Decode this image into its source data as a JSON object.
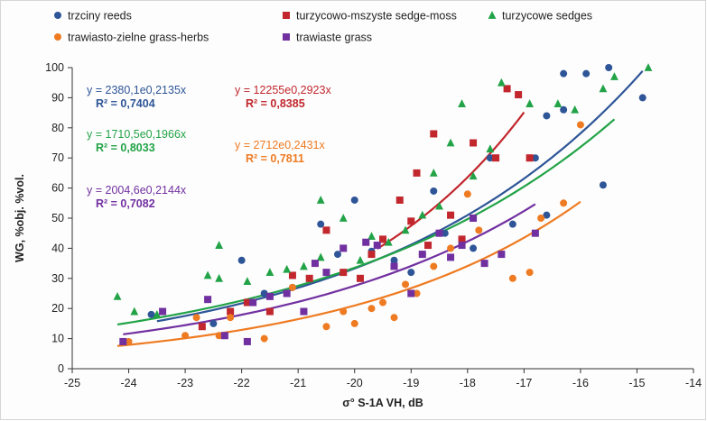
{
  "chart_data": {
    "type": "scatter",
    "xlabel": "σ° S-1A VH, dB",
    "ylabel": "WG, %obj. %vol.",
    "xlim": [
      -25,
      -14
    ],
    "ylim": [
      0,
      100
    ],
    "x_ticks": [
      "-25",
      "-24",
      "-23",
      "-22",
      "-21",
      "-20",
      "-19",
      "-18",
      "-17",
      "-16",
      "-15",
      "-14"
    ],
    "y_ticks": [
      "0",
      "10",
      "20",
      "30",
      "40",
      "50",
      "60",
      "70",
      "80",
      "90",
      "100"
    ],
    "grid": false,
    "legend_position": "top",
    "series": [
      {
        "name": "trzciny reeds",
        "marker": "circle",
        "color": "#2e5597",
        "trendline": {
          "a": 2380.1,
          "b": 0.2135,
          "x_range": [
            -23.5,
            -14.9
          ]
        },
        "equation": "y = 2380,1e0,2135x",
        "r2": "R² = 0,7404",
        "points": [
          [
            -23.6,
            18
          ],
          [
            -22.5,
            15
          ],
          [
            -22,
            36
          ],
          [
            -21.6,
            25
          ],
          [
            -21.1,
            27
          ],
          [
            -20.6,
            48
          ],
          [
            -20.3,
            38
          ],
          [
            -20,
            56
          ],
          [
            -19.7,
            39
          ],
          [
            -19.3,
            36
          ],
          [
            -19,
            32
          ],
          [
            -18.8,
            38
          ],
          [
            -18.6,
            59
          ],
          [
            -18.4,
            45
          ],
          [
            -18.1,
            43
          ],
          [
            -17.9,
            40
          ],
          [
            -17.6,
            70
          ],
          [
            -17.2,
            48
          ],
          [
            -16.8,
            70
          ],
          [
            -16.6,
            51
          ],
          [
            -16.6,
            84
          ],
          [
            -16.3,
            98
          ],
          [
            -16.3,
            86
          ],
          [
            -15.9,
            98
          ],
          [
            -15.6,
            61
          ],
          [
            -15.5,
            100
          ],
          [
            -14.9,
            90
          ]
        ]
      },
      {
        "name": "turzycowo-mszyste sedge-moss",
        "marker": "square",
        "color": "#c1272d",
        "trendline": {
          "a": 12255,
          "b": 0.2923,
          "x_range": [
            -19.6,
            -17
          ]
        },
        "equation": "y = 12255e0,2923x",
        "r2": "R² = 0,8385",
        "points": [
          [
            -22.7,
            14
          ],
          [
            -22.2,
            19
          ],
          [
            -21.9,
            22
          ],
          [
            -21.5,
            19
          ],
          [
            -21.1,
            31
          ],
          [
            -20.8,
            30
          ],
          [
            -20.5,
            46
          ],
          [
            -20.2,
            32
          ],
          [
            -19.9,
            30
          ],
          [
            -19.7,
            38
          ],
          [
            -19.5,
            43
          ],
          [
            -19.2,
            56
          ],
          [
            -19,
            49
          ],
          [
            -18.9,
            65
          ],
          [
            -18.7,
            41
          ],
          [
            -18.6,
            78
          ],
          [
            -18.3,
            51
          ],
          [
            -18.1,
            43
          ],
          [
            -17.9,
            75
          ],
          [
            -17.5,
            70
          ],
          [
            -17.3,
            93
          ],
          [
            -17.1,
            91
          ],
          [
            -16.9,
            70
          ]
        ]
      },
      {
        "name": "turzycowe sedges",
        "marker": "triangle",
        "color": "#22a347",
        "trendline": {
          "a": 1710.5,
          "b": 0.1966,
          "x_range": [
            -24.2,
            -15.4
          ]
        },
        "equation": "y = 1710,5e0,1966x",
        "r2": "R² = 0,8033",
        "points": [
          [
            -24.2,
            24
          ],
          [
            -23.9,
            19
          ],
          [
            -23.5,
            18
          ],
          [
            -22.6,
            31
          ],
          [
            -22.4,
            41
          ],
          [
            -22.4,
            30
          ],
          [
            -21.9,
            29
          ],
          [
            -21.5,
            32
          ],
          [
            -21.2,
            33
          ],
          [
            -20.9,
            34
          ],
          [
            -20.6,
            56
          ],
          [
            -20.6,
            37
          ],
          [
            -20.2,
            50
          ],
          [
            -19.9,
            36
          ],
          [
            -19.7,
            44
          ],
          [
            -19.4,
            42
          ],
          [
            -19.1,
            46
          ],
          [
            -18.8,
            51
          ],
          [
            -18.6,
            65
          ],
          [
            -18.5,
            54
          ],
          [
            -18.3,
            75
          ],
          [
            -18.1,
            88
          ],
          [
            -17.9,
            64
          ],
          [
            -17.6,
            73
          ],
          [
            -17.4,
            95
          ],
          [
            -16.9,
            88
          ],
          [
            -16.4,
            88
          ],
          [
            -16.1,
            86
          ],
          [
            -15.6,
            93
          ],
          [
            -15.4,
            97
          ],
          [
            -14.8,
            100
          ]
        ]
      },
      {
        "name": "trawiasto-zielne grass-herbs",
        "marker": "circle",
        "color": "#ee7b22",
        "trendline": {
          "a": 2712,
          "b": 0.2431,
          "x_range": [
            -24.2,
            -16
          ]
        },
        "equation": "y = 2712e0,2431x",
        "r2": "R² = 0,7811",
        "points": [
          [
            -24,
            9
          ],
          [
            -23,
            11
          ],
          [
            -22.8,
            17
          ],
          [
            -22.4,
            11
          ],
          [
            -22.2,
            17
          ],
          [
            -21.6,
            10
          ],
          [
            -21.1,
            27
          ],
          [
            -20.5,
            14
          ],
          [
            -20.2,
            19
          ],
          [
            -20,
            15
          ],
          [
            -19.7,
            20
          ],
          [
            -19.5,
            22
          ],
          [
            -19.3,
            17
          ],
          [
            -19.1,
            28
          ],
          [
            -18.9,
            25
          ],
          [
            -18.6,
            34
          ],
          [
            -18.3,
            40
          ],
          [
            -18,
            58
          ],
          [
            -17.8,
            46
          ],
          [
            -17.2,
            30
          ],
          [
            -16.9,
            32
          ],
          [
            -16.7,
            50
          ],
          [
            -16.3,
            55
          ],
          [
            -16,
            81
          ]
        ]
      },
      {
        "name": "trawiaste grass",
        "marker": "square",
        "color": "#7130a0",
        "trendline": {
          "a": 2004.6,
          "b": 0.2144,
          "x_range": [
            -24.1,
            -16.8
          ]
        },
        "equation": "y = 2004,6e0,2144x",
        "r2": "R² = 0,7082",
        "points": [
          [
            -24.1,
            9
          ],
          [
            -23.4,
            19
          ],
          [
            -22.6,
            23
          ],
          [
            -22.3,
            11
          ],
          [
            -21.9,
            9
          ],
          [
            -21.8,
            22
          ],
          [
            -21.5,
            24
          ],
          [
            -21.2,
            25
          ],
          [
            -20.9,
            19
          ],
          [
            -20.7,
            35
          ],
          [
            -20.5,
            32
          ],
          [
            -20.2,
            40
          ],
          [
            -19.8,
            42
          ],
          [
            -19.6,
            41
          ],
          [
            -19.3,
            34
          ],
          [
            -19,
            25
          ],
          [
            -18.8,
            38
          ],
          [
            -18.5,
            45
          ],
          [
            -18.3,
            37
          ],
          [
            -18.1,
            41
          ],
          [
            -17.9,
            50
          ],
          [
            -17.7,
            35
          ],
          [
            -17.4,
            38
          ],
          [
            -16.8,
            45
          ]
        ]
      }
    ]
  }
}
